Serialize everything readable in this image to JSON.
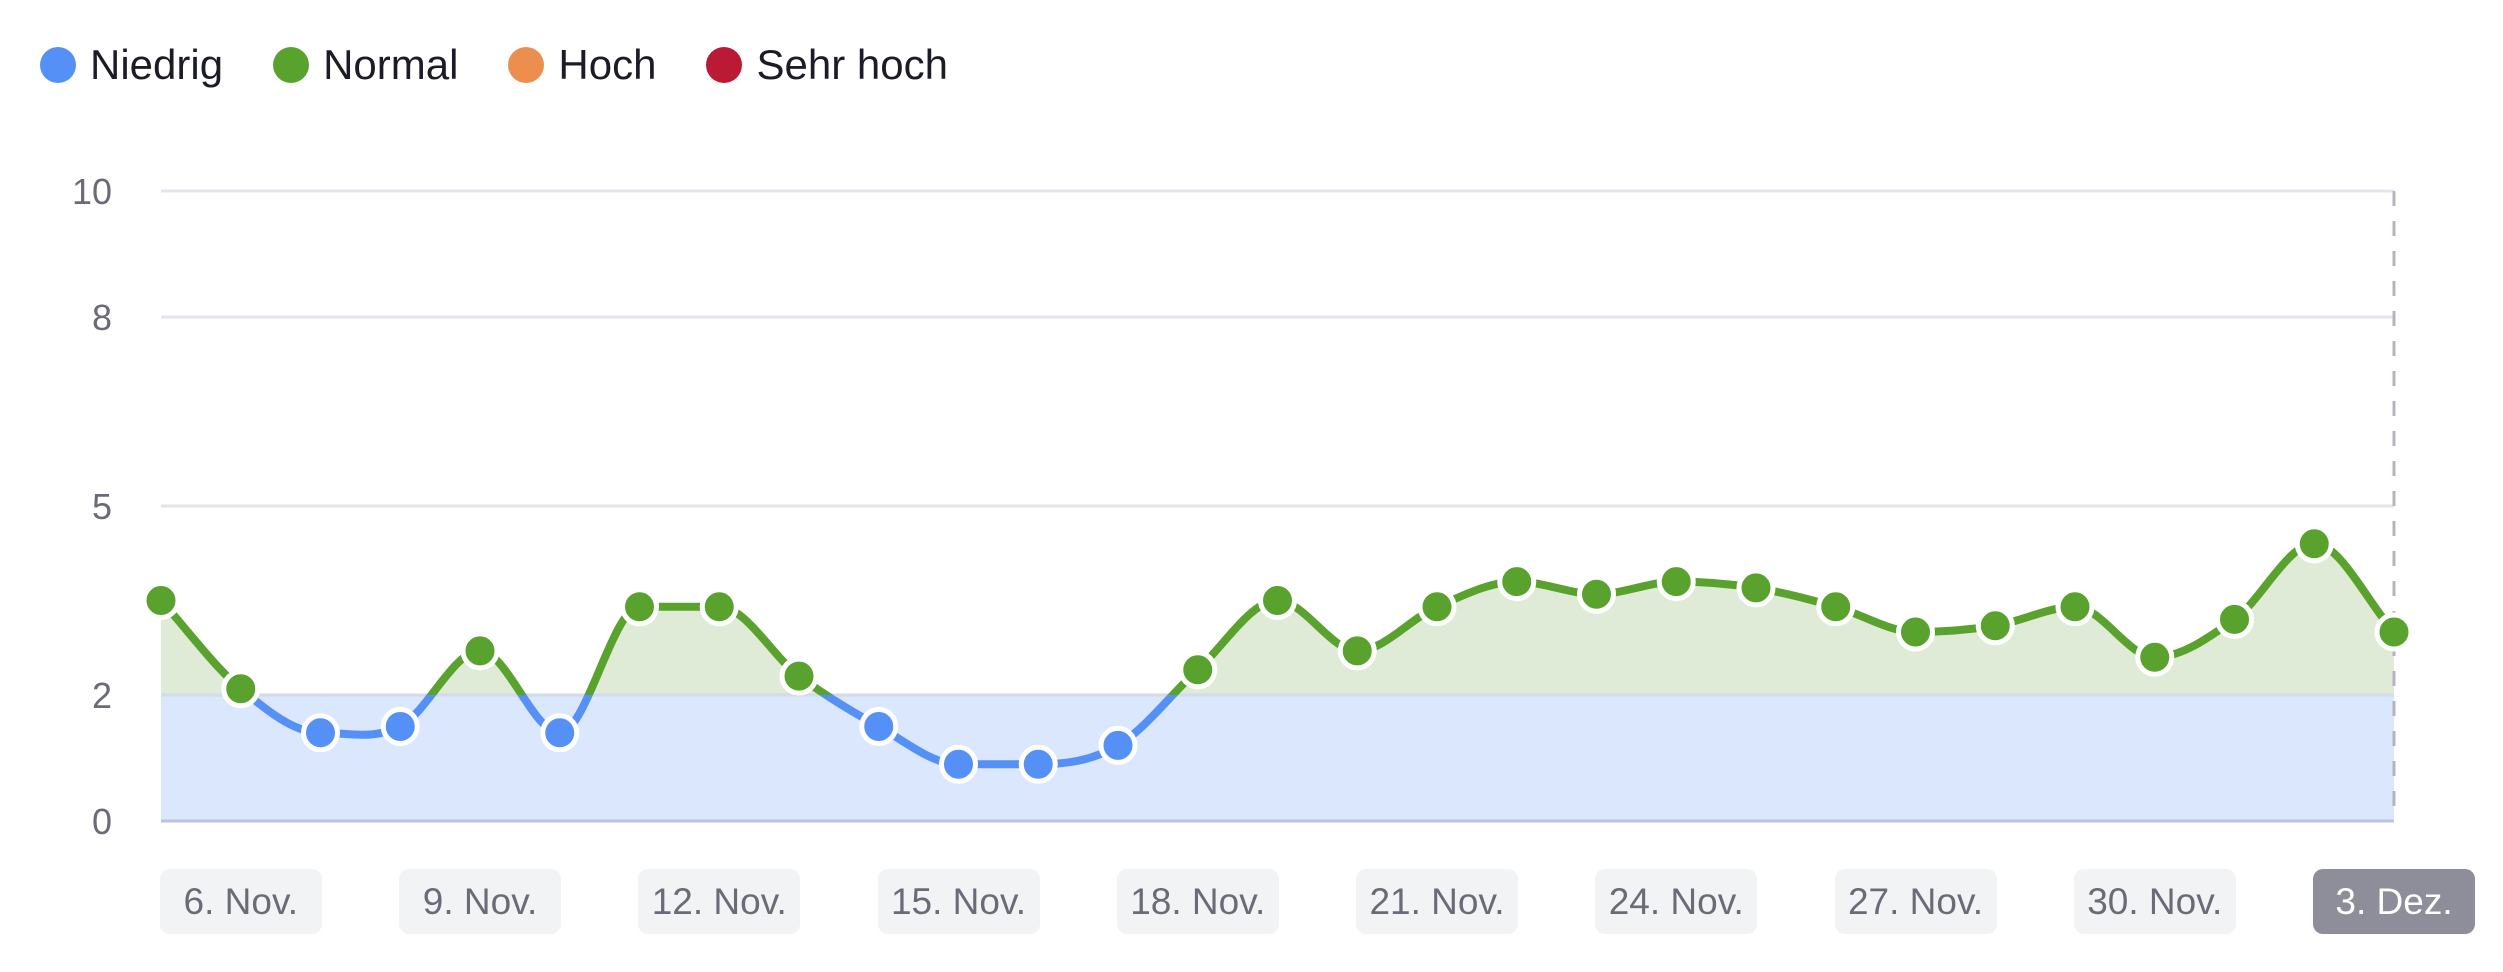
{
  "legend": {
    "items": [
      {
        "label": "Niedrig",
        "color": "#5590f6"
      },
      {
        "label": "Normal",
        "color": "#5aa22e"
      },
      {
        "label": "Hoch",
        "color": "#ec8f4e"
      },
      {
        "label": "Sehr hoch",
        "color": "#bb1a35"
      }
    ]
  },
  "colors": {
    "low_line": "#5590f6",
    "low_fill": "#dbe7fc",
    "normal_line": "#5aa22e",
    "normal_fill": "#dfebd6",
    "grid": "#e4e4ec",
    "baseline": "#b8c4df",
    "crosshair": "#b4b4c0",
    "active_label_bg": "#8e8e9a"
  },
  "x_labels": [
    {
      "label": "6. Nov.",
      "index": 1
    },
    {
      "label": "9. Nov.",
      "index": 4
    },
    {
      "label": "12. Nov.",
      "index": 7
    },
    {
      "label": "15. Nov.",
      "index": 10
    },
    {
      "label": "18. Nov.",
      "index": 13
    },
    {
      "label": "21. Nov.",
      "index": 16
    },
    {
      "label": "24. Nov.",
      "index": 19
    },
    {
      "label": "27. Nov.",
      "index": 22
    },
    {
      "label": "30. Nov.",
      "index": 25
    },
    {
      "label": "3. Dez.",
      "index": 28,
      "active": true
    }
  ],
  "chart_data": {
    "type": "line",
    "title": "",
    "xlabel": "",
    "ylabel": "",
    "x": [
      "5. Nov.",
      "6. Nov.",
      "7. Nov.",
      "8. Nov.",
      "9. Nov.",
      "10. Nov.",
      "11. Nov.",
      "12. Nov.",
      "13. Nov.",
      "14. Nov.",
      "15. Nov.",
      "16. Nov.",
      "17. Nov.",
      "18. Nov.",
      "19. Nov.",
      "20. Nov.",
      "21. Nov.",
      "22. Nov.",
      "23. Nov.",
      "24. Nov.",
      "25. Nov.",
      "26. Nov.",
      "27. Nov.",
      "28. Nov.",
      "29. Nov.",
      "30. Nov.",
      "1. Dez.",
      "2. Dez.",
      "3. Dez."
    ],
    "values": [
      3.5,
      2.1,
      1.4,
      1.5,
      2.7,
      1.4,
      3.4,
      3.4,
      2.3,
      1.5,
      0.9,
      0.9,
      1.2,
      2.4,
      3.5,
      2.7,
      3.4,
      3.8,
      3.6,
      3.8,
      3.7,
      3.4,
      3.0,
      3.1,
      3.4,
      2.6,
      3.2,
      4.4,
      3.0
    ],
    "yticks": [
      0,
      2,
      5,
      8,
      10
    ],
    "ylim": [
      0,
      10
    ],
    "grid": true,
    "legend_position": "top-left",
    "bands": [
      {
        "name": "Niedrig",
        "range": [
          0,
          2
        ]
      },
      {
        "name": "Normal",
        "range": [
          2,
          5
        ]
      },
      {
        "name": "Hoch",
        "range": [
          5,
          8
        ]
      },
      {
        "name": "Sehr hoch",
        "range": [
          8,
          10
        ]
      }
    ],
    "highlighted_x": "3. Dez."
  }
}
